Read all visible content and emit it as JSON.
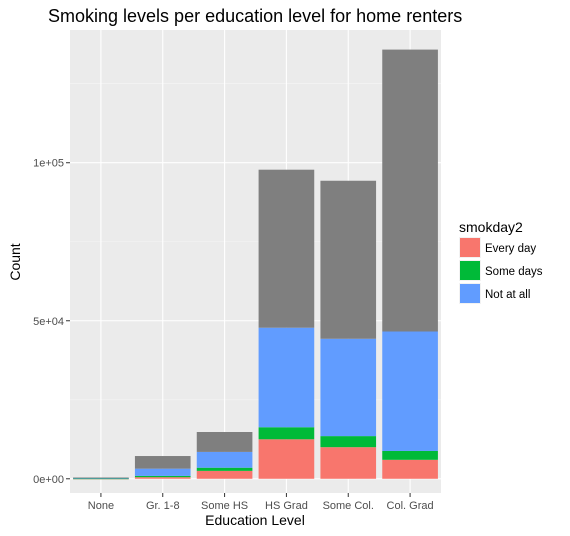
{
  "chart_data": {
    "type": "bar",
    "stacked": true,
    "title": "Smoking levels per education level for home renters",
    "xlabel": "Education Level",
    "ylabel": "Count",
    "categories": [
      "None",
      "Gr. 1-8",
      "Some HS",
      "HS Grad",
      "Some Col.",
      "Col. Grad"
    ],
    "y_ticks": [
      0,
      50000,
      100000
    ],
    "y_tick_labels": [
      "0e+00",
      "5e+04",
      "1e+05"
    ],
    "ylim": [
      -4500,
      142000
    ],
    "grid": true,
    "legend_position": "right",
    "legend_title": "smokday2",
    "series": [
      {
        "name": "Every day",
        "color": "#F8766D",
        "values": [
          100,
          500,
          2500,
          12500,
          10000,
          6000
        ]
      },
      {
        "name": "Some days",
        "color": "#00BA38",
        "values": [
          30,
          400,
          1000,
          3800,
          3500,
          2800
        ]
      },
      {
        "name": "Not at all",
        "color": "#619CFF",
        "values": [
          150,
          2300,
          5000,
          31500,
          30800,
          37800
        ]
      },
      {
        "name": "",
        "color": "#7F7F7F",
        "values": [
          120,
          4000,
          6300,
          50000,
          50000,
          89200
        ]
      }
    ]
  }
}
